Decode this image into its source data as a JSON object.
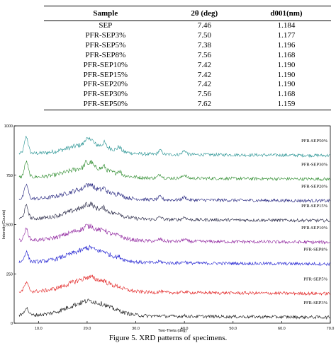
{
  "table": {
    "headers": [
      "Sample",
      "2θ (deg)",
      "d001(nm)"
    ],
    "rows": [
      [
        "SEP",
        "7.46",
        "1.184"
      ],
      [
        "PFR-SEP3%",
        "7.50",
        "1.177"
      ],
      [
        "PFR-SEP5%",
        "7.38",
        "1.196"
      ],
      [
        "PFR-SEP8%",
        "7.56",
        "1.168"
      ],
      [
        "PFR-SEP10%",
        "7.42",
        "1.190"
      ],
      [
        "PFR-SEP15%",
        "7.42",
        "1.190"
      ],
      [
        "PFR-SEP20%",
        "7.42",
        "1.190"
      ],
      [
        "PFR-SEP30%",
        "7.56",
        "1.168"
      ],
      [
        "PFR-SEP50%",
        "7.62",
        "1.159"
      ]
    ]
  },
  "chart_data": {
    "type": "line",
    "xlabel": "Two-Theta (deg)",
    "ylabel": "Intensity(Counts)",
    "xlim": [
      5,
      70
    ],
    "ylim": [
      0,
      1000
    ],
    "x_ticks": [
      "10.0",
      "20.0",
      "30.0",
      "40.0",
      "50.0",
      "60.0",
      "70.0"
    ],
    "y_ticks": [
      "0",
      "250",
      "500",
      "750",
      "1000"
    ],
    "series": [
      {
        "name": "PFR-SEP50%",
        "color": "#1f8f8f",
        "offset": 860
      },
      {
        "name": "PFR-SEP30%",
        "color": "#2a8a2a",
        "offset": 740
      },
      {
        "name": "PFR-SEP20%",
        "color": "#1c1c7a",
        "offset": 630
      },
      {
        "name": "PFR-SEP15%",
        "color": "#1a1a3a",
        "offset": 530
      },
      {
        "name": "PFR-SEP10%",
        "color": "#8a1a9a",
        "offset": 420
      },
      {
        "name": "PFR-SEP8%",
        "color": "#1a1ad0",
        "offset": 310
      },
      {
        "name": "PFR-SEP5%",
        "color": "#e01515",
        "offset": 160
      },
      {
        "name": "PFR-SEP3%",
        "color": "#111111",
        "offset": 40
      }
    ]
  },
  "caption": "Figure 5. XRD patterns of specimens."
}
